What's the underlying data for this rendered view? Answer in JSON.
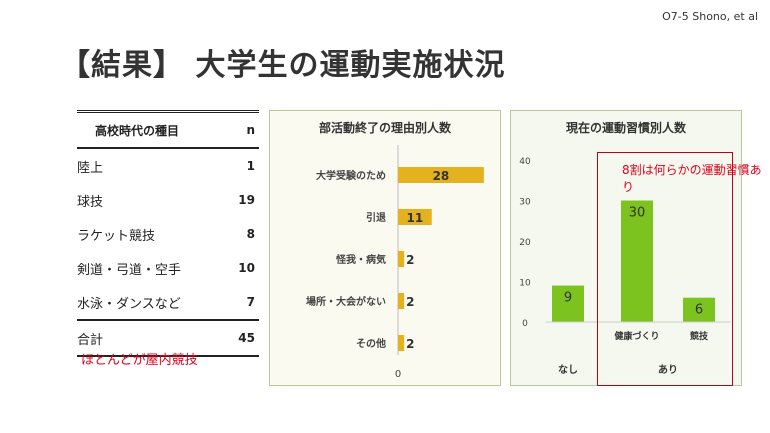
{
  "ref": "O7-5 Shono, et al",
  "title": "【結果】 大学生の運動実施状況",
  "table": {
    "header": {
      "name": "高校時代の種目",
      "n": "n"
    },
    "rows": [
      {
        "name": "陸上",
        "n": "1"
      },
      {
        "name": "球技",
        "n": "19"
      },
      {
        "name": "ラケット競技",
        "n": "8"
      },
      {
        "name": "剣道・弓道・空手",
        "n": "10"
      },
      {
        "name": "水泳・ダンスなど",
        "n": "7"
      }
    ],
    "total": {
      "name": "合計",
      "n": "45"
    },
    "note": "ほとんどが屋内競技"
  },
  "colors": {
    "bar_yellow": "#e3b21e",
    "bar_green": "#7cc31f",
    "callout_red": "#c0001a"
  },
  "chart_data": [
    {
      "type": "bar",
      "orientation": "horizontal",
      "title": "部活動終了の理由別人数",
      "categories": [
        "大学受験のため",
        "引退",
        "怪我・病気",
        "場所・大会がない",
        "その他"
      ],
      "values": [
        28,
        11,
        2,
        2,
        2
      ],
      "xtick": "0",
      "xlim": [
        0,
        30
      ],
      "grid": false
    },
    {
      "type": "bar",
      "title": "現在の運動習慣別人数",
      "categories": [
        "",
        "健康づくり",
        "競技"
      ],
      "groups": [
        {
          "label": "なし"
        },
        {
          "label": "あり"
        }
      ],
      "values": [
        9,
        30,
        6
      ],
      "yticks": [
        "0",
        "10",
        "20",
        "30",
        "40"
      ],
      "ylim": [
        0,
        40
      ],
      "annotation": "8割は何らかの運動習慣あり"
    }
  ]
}
